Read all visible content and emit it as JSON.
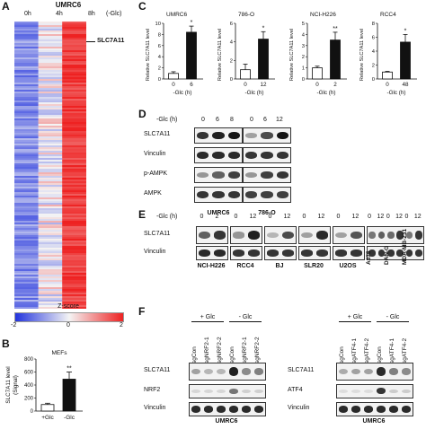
{
  "panel_labels": [
    "A",
    "B",
    "C",
    "D",
    "E",
    "F"
  ],
  "panel_a": {
    "cell_line": "UMRC6",
    "conditions": [
      "0h",
      "4h",
      "8h"
    ],
    "condition_unit": "(-Glc)",
    "gene_label": "SLC7A11",
    "zscore_title": "Z-score",
    "zscore_ticks": [
      "-2",
      "0",
      "2"
    ],
    "colors": {
      "low": "#2233dd",
      "mid": "#f4f4f4",
      "high": "#ee2222"
    }
  },
  "panel_b": {
    "chart_data": {
      "type": "bar",
      "title": "MEFs",
      "ylabel": "SLC7A11 level\n(Signal)",
      "categories": [
        "+Glc",
        "-Glc"
      ],
      "values": [
        100,
        490
      ],
      "errors": [
        20,
        110
      ],
      "ylim": [
        0,
        800
      ],
      "yticks": [
        "0",
        "200",
        "400",
        "600",
        "800"
      ],
      "significance": [
        "",
        "**"
      ],
      "colors": [
        "#ffffff",
        "#111111"
      ]
    }
  },
  "panel_c": {
    "ylabel": "Relative SLC7A11 level",
    "xaxis_title": "-Glc (h)",
    "chart_data": [
      {
        "type": "bar",
        "title": "UMRC6",
        "categories": [
          "0",
          "6"
        ],
        "values": [
          1.0,
          8.4
        ],
        "errors": [
          0.3,
          1.1
        ],
        "ylim": [
          0,
          10
        ],
        "yticks": [
          "0",
          "2",
          "4",
          "6",
          "8",
          "10"
        ],
        "significance": [
          "",
          "*"
        ]
      },
      {
        "type": "bar",
        "title": "786-O",
        "categories": [
          "0",
          "12"
        ],
        "values": [
          1.0,
          4.3
        ],
        "errors": [
          0.6,
          0.8
        ],
        "ylim": [
          0,
          6
        ],
        "yticks": [
          "0",
          "2",
          "4",
          "6"
        ],
        "significance": [
          "",
          "*"
        ]
      },
      {
        "type": "bar",
        "title": "NCI-H226",
        "categories": [
          "0",
          "2"
        ],
        "values": [
          1.0,
          3.5
        ],
        "errors": [
          0.15,
          0.7
        ],
        "ylim": [
          0,
          5
        ],
        "yticks": [
          "0",
          "1",
          "2",
          "3",
          "4",
          "5"
        ],
        "significance": [
          "",
          "**"
        ]
      },
      {
        "type": "bar",
        "title": "RCC4",
        "categories": [
          "0",
          "48"
        ],
        "values": [
          1.0,
          5.3
        ],
        "errors": [
          0.1,
          1.1
        ],
        "ylim": [
          0,
          8
        ],
        "yticks": [
          "0",
          "2",
          "4",
          "6",
          "8"
        ],
        "significance": [
          "",
          "*"
        ]
      }
    ]
  },
  "panel_d": {
    "header": "-Glc (h)",
    "time_groups": [
      [
        "0",
        "6",
        "8"
      ],
      [
        "0",
        "6",
        "12"
      ]
    ],
    "cell_lines": [
      "UMRC6",
      "786-O"
    ],
    "rows": [
      "SLC7A11",
      "Vinculin",
      "p-AMPK",
      "AMPK"
    ]
  },
  "panel_e": {
    "header": "-Glc (h)",
    "times": [
      "0",
      "2",
      "0",
      "12",
      "0",
      "12",
      "0",
      "12",
      "0",
      "12",
      "0",
      "12",
      "0",
      "12",
      "0",
      "12"
    ],
    "cell_lines_bottom": [
      "NCI-H226",
      "RCC4",
      "BJ",
      "SLR20",
      "U2OS"
    ],
    "cell_lines_rotated": [
      "A375",
      "DAN-G",
      "MDA-MB-231"
    ],
    "rows": [
      "SLC7A11",
      "Vinculin"
    ]
  },
  "panel_f": {
    "left": {
      "groups": [
        "+ Glc",
        "- Glc"
      ],
      "lanes": [
        "sgCon",
        "sgNRF2-1",
        "sgNRF2-2",
        "sgCon",
        "sgNRF2-1",
        "sgNRF2-2"
      ],
      "rows": [
        "SLC7A11",
        "NRF2",
        "Vinculin"
      ],
      "cell_line": "UMRC6"
    },
    "right": {
      "groups": [
        "+ Glc",
        "- Glc"
      ],
      "lanes": [
        "sgCon",
        "sgATF4-1",
        "sgATF4-2",
        "sgCon",
        "sgATF4-1",
        "sgATF4-2"
      ],
      "rows": [
        "SLC7A11",
        "ATF4",
        "Vinculin"
      ],
      "cell_line": "UMRC6"
    }
  }
}
